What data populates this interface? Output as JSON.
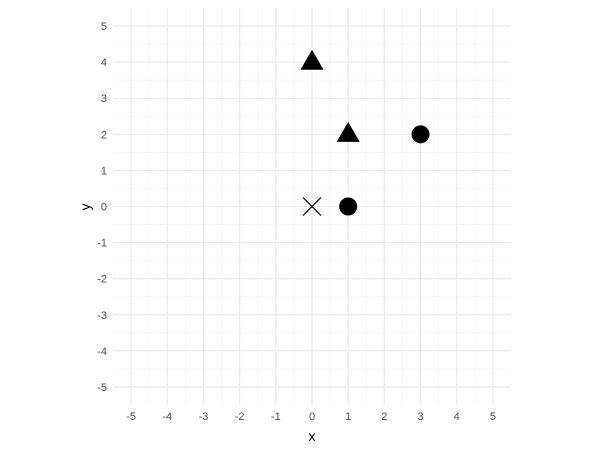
{
  "chart_data": {
    "type": "scatter",
    "title": "",
    "xlabel": "x",
    "ylabel": "y",
    "xlim": [
      -5.5,
      5.5
    ],
    "ylim": [
      -5.5,
      5.5
    ],
    "x_ticks": [
      -5,
      -4,
      -3,
      -2,
      -1,
      0,
      1,
      2,
      3,
      4,
      5
    ],
    "y_ticks": [
      -5,
      -4,
      -3,
      -2,
      -1,
      0,
      1,
      2,
      3,
      4,
      5
    ],
    "x_tick_labels": [
      "-5",
      "-4",
      "-3",
      "-2",
      "-1",
      "0",
      "1",
      "2",
      "3",
      "4",
      "5"
    ],
    "y_tick_labels": [
      "-5",
      "-4",
      "-3",
      "-2",
      "-1",
      "0",
      "1",
      "2",
      "3",
      "4",
      "5"
    ],
    "grid": true,
    "legend": "none",
    "points": [
      {
        "x": 0,
        "y": 4,
        "shape": "triangle"
      },
      {
        "x": 1,
        "y": 2,
        "shape": "triangle"
      },
      {
        "x": 3,
        "y": 2,
        "shape": "circle"
      },
      {
        "x": 1,
        "y": 0,
        "shape": "circle"
      },
      {
        "x": 0,
        "y": 0,
        "shape": "cross"
      }
    ],
    "colors": {
      "background": "#ffffff",
      "major_grid": "#ebebeb",
      "minor_grid": "#f5f5f5",
      "marker": "#000000",
      "tick_label": "#4d4d4d"
    }
  }
}
